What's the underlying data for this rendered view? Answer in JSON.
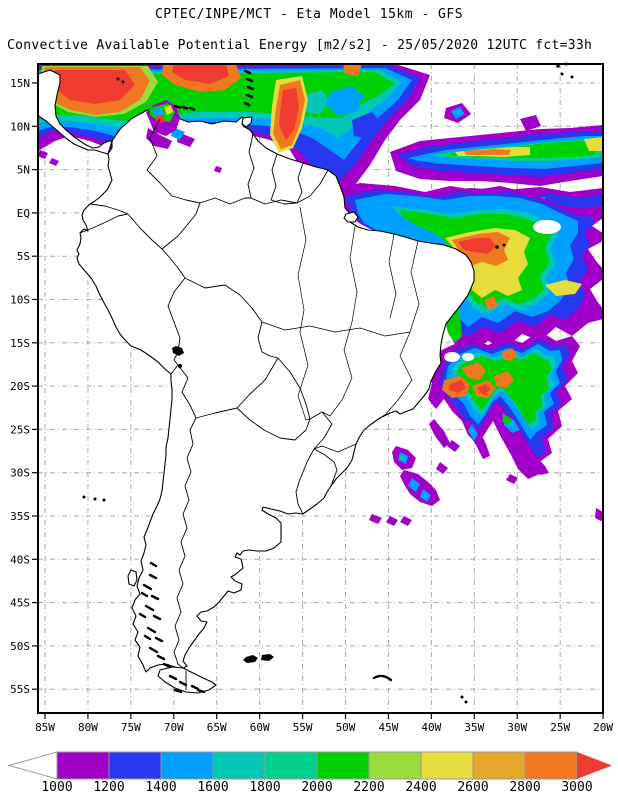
{
  "titles": {
    "line1": "CPTEC/INPE/MCT -  Eta Model 15km - GFS",
    "line2": "Convective Available Potential Energy [m2/s2] - 25/05/2020 12UTC fct=33h"
  },
  "map": {
    "lat_ticks": [
      "15N",
      "10N",
      "5N",
      "EQ",
      "5S",
      "10S",
      "15S",
      "20S",
      "25S",
      "30S",
      "35S",
      "40S",
      "45S",
      "50S",
      "55S"
    ],
    "lon_ticks": [
      "85W",
      "80W",
      "75W",
      "70W",
      "65W",
      "60W",
      "55W",
      "50W",
      "45W",
      "40W",
      "35W",
      "30W",
      "25W",
      "20W"
    ]
  },
  "colorbar": {
    "tick_labels": [
      "1000",
      "1200",
      "1400",
      "1600",
      "1800",
      "2000",
      "2200",
      "2400",
      "2600",
      "2800",
      "3000"
    ],
    "box_colors": [
      "#A000C8",
      "#2838F0",
      "#00A0FF",
      "#00C8B4",
      "#00D28C",
      "#00D000",
      "#99DC3C",
      "#E6DC3C",
      "#E6A82A",
      "#F07820"
    ],
    "left_arrow_color": "#FFFFFF",
    "right_arrow_color": "#F03C30",
    "outline_color": "#999999"
  },
  "palette": {
    "c1000": "#A000C8",
    "c1200": "#2838F0",
    "c1400": "#00A0FF",
    "c1600": "#00C8B4",
    "c1800": "#00D28C",
    "c2000": "#00D000",
    "c2200": "#99DC3C",
    "c2400": "#E6DC3C",
    "c2600": "#E6A82A",
    "c2800": "#F07820",
    "c3000": "#F03C30"
  }
}
